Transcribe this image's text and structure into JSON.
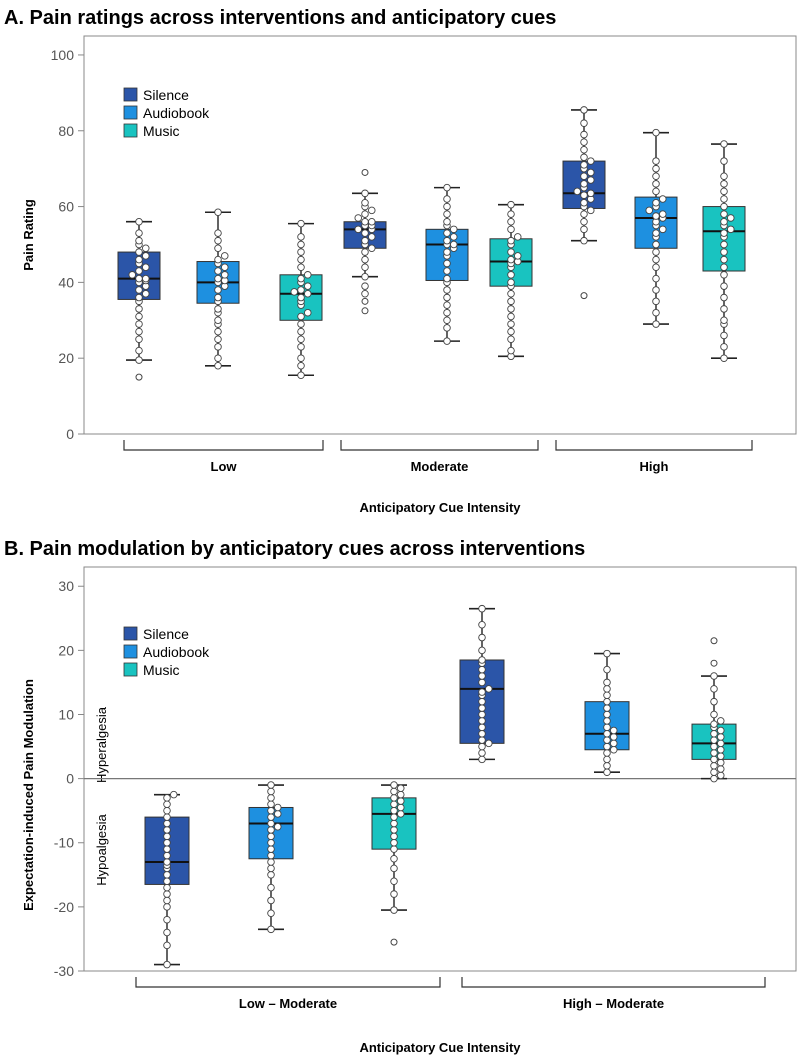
{
  "colors": {
    "silence": "#2b55a8",
    "audiobook": "#1e90e0",
    "music": "#19c3c0",
    "frame": "#888888",
    "zero_line": "#777777"
  },
  "legend": [
    {
      "key": "silence",
      "label": "Silence"
    },
    {
      "key": "audiobook",
      "label": "Audiobook"
    },
    {
      "key": "music",
      "label": "Music"
    }
  ],
  "chart_data": [
    {
      "type": "box",
      "title": "A.  Pain ratings across interventions and anticipatory cues",
      "xlabel": "Anticipatory Cue Intensity",
      "ylabel": "Pain Rating",
      "ylim": [
        0,
        105
      ],
      "yticks": [
        0,
        20,
        40,
        60,
        80,
        100
      ],
      "groups": [
        "Low",
        "Moderate",
        "High"
      ],
      "series": [
        "Silence",
        "Audiobook",
        "Music"
      ],
      "boxes": [
        {
          "group": "Low",
          "series": "Silence",
          "min": 19.5,
          "q1": 35.5,
          "median": 41,
          "q3": 48,
          "max": 56,
          "outliers": [
            15
          ],
          "points": [
            19.5,
            22,
            25,
            27,
            29,
            31,
            33,
            35,
            36,
            37,
            38,
            39,
            40,
            40.5,
            41,
            41,
            42,
            43,
            44,
            45,
            46,
            47,
            48,
            49,
            50,
            51,
            53,
            56
          ]
        },
        {
          "group": "Low",
          "series": "Audiobook",
          "min": 18,
          "q1": 34.5,
          "median": 40,
          "q3": 45.5,
          "max": 58.5,
          "outliers": [],
          "points": [
            18,
            20,
            23,
            25,
            27,
            29,
            30,
            32,
            33,
            35,
            36,
            38,
            39,
            40,
            40.5,
            41,
            42,
            43,
            44,
            45,
            46,
            47,
            49,
            51,
            53,
            58.5
          ]
        },
        {
          "group": "Low",
          "series": "Music",
          "min": 15.5,
          "q1": 30,
          "median": 37,
          "q3": 42,
          "max": 55.5,
          "outliers": [],
          "points": [
            15.5,
            18,
            20,
            23,
            25,
            27,
            29,
            31,
            32,
            34,
            35,
            36,
            37,
            37.5,
            38,
            39,
            40,
            41,
            42,
            44,
            46,
            48,
            50,
            52,
            55.5
          ]
        },
        {
          "group": "Moderate",
          "series": "Silence",
          "min": 41.5,
          "q1": 49,
          "median": 54,
          "q3": 56,
          "max": 63.5,
          "outliers": [
            69,
            32.5,
            35
          ],
          "points": [
            37,
            39,
            41.5,
            44,
            46,
            48,
            49,
            50,
            51,
            52,
            53,
            54,
            54,
            55,
            55,
            56,
            56,
            57,
            58,
            59,
            60,
            61,
            63.5
          ]
        },
        {
          "group": "Moderate",
          "series": "Audiobook",
          "min": 24.5,
          "q1": 40.5,
          "median": 50,
          "q3": 54,
          "max": 65,
          "outliers": [],
          "points": [
            24.5,
            28,
            30,
            32,
            34,
            36,
            38,
            40,
            41,
            43,
            45,
            47,
            48,
            49,
            50,
            50,
            51,
            52,
            53,
            54,
            55,
            56,
            58,
            60,
            62,
            65
          ]
        },
        {
          "group": "Moderate",
          "series": "Music",
          "min": 20.5,
          "q1": 39,
          "median": 45.5,
          "q3": 51.5,
          "max": 60.5,
          "outliers": [],
          "points": [
            20.5,
            22,
            25,
            27,
            29,
            31,
            33,
            35,
            37,
            39,
            40,
            42,
            44,
            45,
            45.5,
            46,
            47,
            48,
            50,
            51,
            52,
            54,
            56,
            58,
            60.5
          ]
        },
        {
          "group": "High",
          "series": "Silence",
          "min": 51,
          "q1": 59.5,
          "median": 63.5,
          "q3": 72,
          "max": 85.5,
          "outliers": [
            36.5
          ],
          "points": [
            51,
            54,
            56,
            58,
            59,
            60,
            61,
            62,
            63,
            63.5,
            64,
            65,
            66,
            67,
            68,
            69,
            70,
            71,
            72,
            73,
            75,
            77,
            79,
            82,
            85.5
          ]
        },
        {
          "group": "High",
          "series": "Audiobook",
          "min": 29,
          "q1": 49,
          "median": 57,
          "q3": 62.5,
          "max": 79.5,
          "outliers": [],
          "points": [
            29,
            32,
            35,
            38,
            41,
            44,
            46,
            48,
            50,
            52,
            53,
            54,
            55,
            56,
            57,
            57.5,
            58,
            59,
            60,
            61,
            62,
            64,
            66,
            68,
            70,
            72,
            79.5
          ]
        },
        {
          "group": "High",
          "series": "Music",
          "min": 20,
          "q1": 43,
          "median": 53.5,
          "q3": 60,
          "max": 76.5,
          "outliers": [],
          "points": [
            20,
            23,
            26,
            29,
            30,
            33,
            36,
            39,
            42,
            44,
            46,
            48,
            50,
            52,
            53,
            54,
            55,
            56,
            57,
            58,
            60,
            62,
            64,
            66,
            68,
            72,
            76.5
          ]
        }
      ],
      "legend_position": "top-left"
    },
    {
      "type": "box",
      "title": "B.  Pain modulation by anticipatory cues across interventions",
      "xlabel": "Anticipatory Cue Intensity",
      "ylabel": "Expectation-induced Pain Modulation",
      "ylim": [
        -30,
        33
      ],
      "yticks": [
        -30,
        -20,
        -10,
        0,
        10,
        20,
        30
      ],
      "regions": {
        "above_zero": "Hyperalgesia",
        "below_zero": "Hypoalgesia"
      },
      "groups": [
        "Low – Moderate",
        "High – Moderate"
      ],
      "series": [
        "Silence",
        "Audiobook",
        "Music"
      ],
      "boxes": [
        {
          "group": "Low – Moderate",
          "series": "Silence",
          "min": -29,
          "q1": -16.5,
          "median": -13,
          "q3": -6,
          "max": -2.5,
          "outliers": [],
          "points": [
            -29,
            -26,
            -24,
            -22,
            -20,
            -19,
            -18,
            -17,
            -16,
            -15,
            -14,
            -13.5,
            -13,
            -12,
            -11,
            -10,
            -9,
            -8,
            -7,
            -6,
            -5,
            -4,
            -3,
            -2.5
          ]
        },
        {
          "group": "Low – Moderate",
          "series": "Audiobook",
          "min": -23.5,
          "q1": -12.5,
          "median": -7,
          "q3": -4.5,
          "max": -1,
          "outliers": [],
          "points": [
            -23.5,
            -21,
            -19,
            -17,
            -15,
            -14,
            -13,
            -12,
            -11,
            -10,
            -9,
            -8,
            -7.5,
            -7,
            -6,
            -5.5,
            -5,
            -4.5,
            -4,
            -3,
            -2,
            -1
          ]
        },
        {
          "group": "Low – Moderate",
          "series": "Music",
          "min": -20.5,
          "q1": -11,
          "median": -5.5,
          "q3": -3,
          "max": -1,
          "outliers": [
            -25.5
          ],
          "points": [
            -20.5,
            -18,
            -16,
            -14,
            -12.5,
            -11,
            -10,
            -9,
            -8,
            -7,
            -6,
            -5.5,
            -5,
            -4.5,
            -4,
            -3.5,
            -3,
            -2.5,
            -2,
            -1.5,
            -1
          ]
        },
        {
          "group": "High – Moderate",
          "series": "Silence",
          "min": 3,
          "q1": 5.5,
          "median": 14,
          "q3": 18.5,
          "max": 26.5,
          "outliers": [],
          "points": [
            3,
            4,
            5,
            5.5,
            6,
            7,
            8,
            9,
            10,
            11,
            12,
            13,
            13.5,
            14,
            15,
            16,
            17,
            18,
            18.5,
            20,
            22,
            24,
            26.5
          ]
        },
        {
          "group": "High – Moderate",
          "series": "Audiobook",
          "min": 1,
          "q1": 4.5,
          "median": 7,
          "q3": 12,
          "max": 19.5,
          "outliers": [],
          "points": [
            1,
            2,
            3,
            4,
            4.5,
            5,
            5.5,
            6,
            6.5,
            7,
            7.5,
            8,
            9,
            10,
            11,
            12,
            13,
            14,
            15,
            17,
            19.5
          ]
        },
        {
          "group": "High – Moderate",
          "series": "Music",
          "min": 0,
          "q1": 3,
          "median": 5.5,
          "q3": 8.5,
          "max": 16,
          "outliers": [
            18,
            21.5
          ],
          "points": [
            0,
            0.5,
            1,
            1.5,
            2,
            2.5,
            3,
            3.5,
            4,
            4.5,
            5,
            5.5,
            6,
            6.5,
            7,
            7.5,
            8,
            8.5,
            9,
            10,
            12,
            14,
            16
          ]
        }
      ],
      "legend_position": "top-left"
    }
  ]
}
